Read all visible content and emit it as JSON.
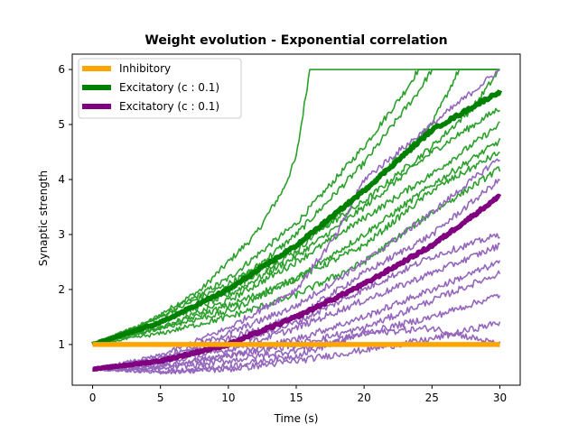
{
  "chart_data": {
    "type": "line",
    "title": "Weight evolution - Exponential correlation",
    "xlabel": "Time (s)",
    "ylabel": "Synaptic strength",
    "xlim": [
      -1.5,
      31.5
    ],
    "ylim": [
      0.26,
      6.28
    ],
    "xticks": [
      0,
      5,
      10,
      15,
      20,
      25,
      30
    ],
    "yticks": [
      1,
      2,
      3,
      4,
      5,
      6
    ],
    "legend": {
      "position": "top-left",
      "entries": [
        {
          "label": "Inhibitory",
          "color": "#ffa500"
        },
        {
          "label": "Excitatory (c : 0.1)",
          "color": "#008000"
        },
        {
          "label": "Excitatory (c : 0.1)",
          "color": "#800080"
        }
      ]
    },
    "colors": {
      "inhibitory": "#ffa500",
      "excitatory_mean": "#008000",
      "excitatory_thin": "#2ca02c",
      "second_mean": "#800080",
      "second_thin": "#9467bd"
    },
    "series": [
      {
        "group": "green-thin",
        "x": [
          0,
          4,
          8,
          12,
          14,
          15,
          16,
          17,
          30
        ],
        "y": [
          1.0,
          1.4,
          2.0,
          3.0,
          3.8,
          4.4,
          6.0,
          6.0,
          6.0
        ]
      },
      {
        "group": "green-thin",
        "x": [
          0,
          5,
          10,
          15,
          20,
          23,
          24,
          30
        ],
        "y": [
          1.0,
          1.5,
          2.2,
          3.2,
          4.6,
          5.6,
          6.0,
          6.0
        ]
      },
      {
        "group": "green-thin",
        "x": [
          0,
          5,
          10,
          15,
          20,
          24,
          25,
          30
        ],
        "y": [
          1.0,
          1.4,
          2.0,
          3.0,
          4.3,
          5.6,
          6.0,
          6.0
        ]
      },
      {
        "group": "green-thin",
        "x": [
          0,
          5,
          10,
          15,
          20,
          25,
          27,
          30
        ],
        "y": [
          1.0,
          1.4,
          2.0,
          2.7,
          3.8,
          5.0,
          6.0,
          6.0
        ]
      },
      {
        "group": "green-thin",
        "x": [
          0,
          5,
          10,
          15,
          20,
          25,
          28,
          30
        ],
        "y": [
          1.0,
          1.5,
          2.1,
          2.8,
          3.6,
          4.6,
          5.3,
          6.0
        ]
      },
      {
        "group": "green-thin",
        "x": [
          0,
          5,
          10,
          15,
          20,
          25,
          30
        ],
        "y": [
          1.0,
          1.4,
          1.9,
          2.6,
          3.5,
          4.5,
          5.3
        ]
      },
      {
        "group": "green-thin",
        "x": [
          0,
          5,
          10,
          15,
          20,
          25,
          30
        ],
        "y": [
          1.0,
          1.3,
          1.8,
          2.5,
          3.3,
          4.1,
          5.0
        ]
      },
      {
        "group": "green-thin",
        "x": [
          0,
          5,
          10,
          15,
          20,
          25,
          30
        ],
        "y": [
          1.0,
          1.3,
          1.6,
          2.2,
          3.0,
          3.9,
          4.7
        ]
      },
      {
        "group": "green-thin",
        "x": [
          0,
          5,
          10,
          15,
          20,
          25,
          30
        ],
        "y": [
          1.0,
          1.3,
          1.7,
          2.2,
          2.8,
          3.8,
          4.5
        ]
      },
      {
        "group": "green-thin",
        "x": [
          0,
          5,
          10,
          15,
          20,
          25,
          30
        ],
        "y": [
          1.0,
          1.2,
          1.5,
          1.9,
          2.5,
          3.4,
          4.2
        ]
      },
      {
        "group": "purple-thin",
        "x": [
          0,
          5,
          10,
          15,
          18,
          20,
          25,
          30
        ],
        "y": [
          0.55,
          0.8,
          1.3,
          2.0,
          3.0,
          4.0,
          5.0,
          6.0
        ]
      },
      {
        "group": "purple-thin",
        "x": [
          0,
          5,
          10,
          15,
          20,
          25,
          30
        ],
        "y": [
          0.55,
          0.75,
          1.2,
          1.7,
          2.5,
          3.4,
          4.4
        ]
      },
      {
        "group": "purple-thin",
        "x": [
          0,
          5,
          10,
          15,
          20,
          25,
          30
        ],
        "y": [
          0.55,
          0.7,
          1.1,
          1.5,
          2.3,
          3.0,
          4.0
        ]
      },
      {
        "group": "purple-thin",
        "x": [
          0,
          5,
          10,
          15,
          20,
          25,
          30
        ],
        "y": [
          0.55,
          0.75,
          1.0,
          1.4,
          2.0,
          2.6,
          3.0
        ]
      },
      {
        "group": "purple-thin",
        "x": [
          0,
          5,
          10,
          15,
          20,
          25,
          30
        ],
        "y": [
          0.55,
          0.65,
          0.9,
          1.3,
          1.8,
          2.3,
          2.8
        ]
      },
      {
        "group": "purple-thin",
        "x": [
          0,
          5,
          10,
          15,
          20,
          25,
          30
        ],
        "y": [
          0.55,
          0.6,
          0.8,
          1.1,
          1.5,
          2.0,
          2.5
        ]
      },
      {
        "group": "purple-thin",
        "x": [
          0,
          5,
          10,
          15,
          20,
          25,
          30
        ],
        "y": [
          0.55,
          0.6,
          0.8,
          1.0,
          1.3,
          1.8,
          2.3
        ]
      },
      {
        "group": "purple-thin",
        "x": [
          0,
          5,
          10,
          15,
          20,
          25,
          30
        ],
        "y": [
          0.55,
          0.55,
          0.7,
          0.9,
          1.2,
          1.5,
          1.9
        ]
      },
      {
        "group": "purple-thin",
        "x": [
          0,
          5,
          10,
          15,
          20,
          25,
          30
        ],
        "y": [
          0.55,
          0.5,
          0.55,
          0.7,
          0.9,
          1.1,
          1.4
        ]
      },
      {
        "group": "purple-thin",
        "x": [
          0,
          5,
          10,
          15,
          20,
          25,
          30
        ],
        "y": [
          0.55,
          0.5,
          0.6,
          0.8,
          1.2,
          1.3,
          1.0
        ]
      },
      {
        "group": "green-mean",
        "x": [
          0,
          5,
          10,
          15,
          20,
          25,
          30
        ],
        "y": [
          1.0,
          1.4,
          2.0,
          2.8,
          3.8,
          4.9,
          5.6
        ]
      },
      {
        "group": "purple-mean",
        "x": [
          0,
          5,
          10,
          15,
          20,
          25,
          30
        ],
        "y": [
          0.55,
          0.7,
          1.0,
          1.5,
          2.1,
          2.8,
          3.7
        ]
      },
      {
        "group": "inhibitory",
        "x": [
          0,
          30
        ],
        "y": [
          1.0,
          1.0
        ]
      }
    ]
  }
}
